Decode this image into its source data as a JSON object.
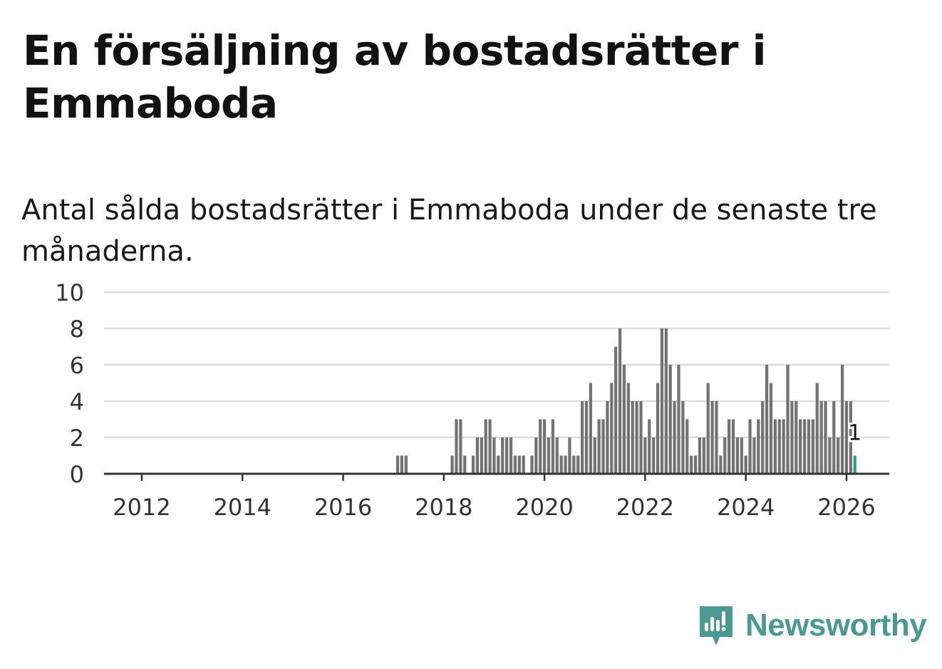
{
  "header": {
    "title": "En försäljning av bostadsrätter i Emmaboda",
    "subtitle": "Antal sålda bostadsrätter i Emmaboda under de senaste tre månaderna."
  },
  "brand": {
    "name": "Newsworthy",
    "icon": "newsworthy-logo-icon",
    "color": "#4a9a93"
  },
  "colors": {
    "bar": "#737373",
    "highlight": "#2a9d8f",
    "grid": "#dddddd",
    "axis": "#333333",
    "tick_text": "#333333"
  },
  "chart_data": {
    "type": "bar",
    "title": "Antal sålda bostadsrätter i Emmaboda under de senaste tre månaderna.",
    "xlabel": "",
    "ylabel": "",
    "ylim": [
      0,
      10
    ],
    "yticks": [
      0,
      2,
      4,
      6,
      8,
      10
    ],
    "xlim": [
      2011.25,
      2026.85
    ],
    "xticks": [
      2012,
      2014,
      2016,
      2018,
      2020,
      2022,
      2024,
      2026
    ],
    "grid": true,
    "series": [
      {
        "name": "Antal sålda bostadsrätter",
        "start": "2011-05",
        "values": [
          0,
          0,
          0,
          0,
          0,
          0,
          0,
          0,
          0,
          0,
          0,
          0,
          0,
          0,
          0,
          0,
          0,
          0,
          0,
          0,
          0,
          0,
          0,
          0,
          0,
          0,
          0,
          0,
          0,
          0,
          0,
          0,
          0,
          0,
          0,
          0,
          0,
          0,
          0,
          0,
          0,
          0,
          0,
          0,
          0,
          0,
          0,
          0,
          0,
          0,
          0,
          0,
          0,
          0,
          0,
          0,
          0,
          0,
          0,
          0,
          0,
          0,
          0,
          0,
          0,
          0,
          0,
          0,
          0,
          1,
          1,
          1,
          0,
          0,
          0,
          0,
          0,
          0,
          0,
          0,
          0,
          0,
          1,
          3,
          3,
          1,
          0,
          1,
          2,
          2,
          3,
          3,
          2,
          1,
          2,
          2,
          2,
          1,
          1,
          1,
          0,
          1,
          2,
          3,
          3,
          2,
          3,
          2,
          1,
          1,
          2,
          1,
          1,
          4,
          4,
          5,
          2,
          3,
          3,
          4,
          5,
          7,
          8,
          6,
          5,
          4,
          4,
          4,
          2,
          3,
          2,
          5,
          8,
          8,
          6,
          4,
          6,
          4,
          3,
          1,
          1,
          2,
          2,
          5,
          4,
          4,
          1,
          2,
          3,
          3,
          2,
          2,
          1,
          3,
          2,
          3,
          4,
          6,
          5,
          3,
          3,
          3,
          6,
          4,
          4,
          3,
          3,
          3,
          3,
          5,
          4,
          4,
          2,
          4,
          2,
          6,
          4,
          4,
          1
        ]
      }
    ],
    "highlight": {
      "last_value_label": "1"
    }
  }
}
